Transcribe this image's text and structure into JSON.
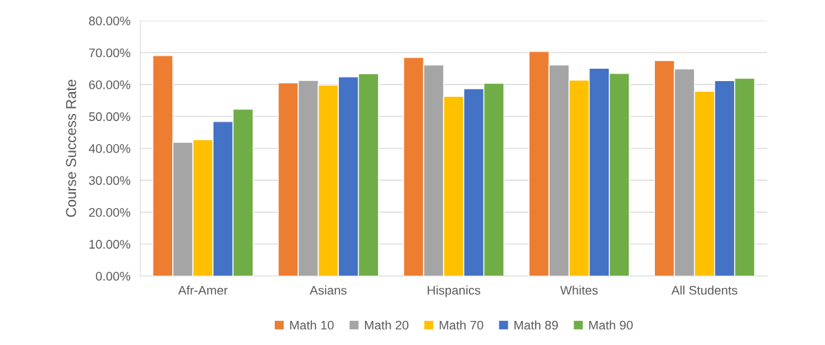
{
  "chart_data": {
    "type": "bar",
    "ylabel": "Course Success Rate",
    "categories": [
      "Afr-Amer",
      "Asians",
      "Hispanics",
      "Whites",
      "All Students"
    ],
    "series": [
      {
        "name": "Math 10",
        "color": "#ed7d31",
        "values": [
          69.1,
          60.5,
          68.5,
          70.4,
          67.5
        ]
      },
      {
        "name": "Math 20",
        "color": "#a5a5a5",
        "values": [
          41.9,
          61.3,
          66.1,
          66.1,
          64.9
        ]
      },
      {
        "name": "Math 70",
        "color": "#ffc000",
        "values": [
          42.7,
          59.8,
          56.3,
          61.4,
          57.9
        ]
      },
      {
        "name": "Math 89",
        "color": "#4472c4",
        "values": [
          48.4,
          62.4,
          58.7,
          65.1,
          61.2
        ]
      },
      {
        "name": "Math 90",
        "color": "#70ad47",
        "values": [
          52.3,
          63.4,
          60.4,
          63.5,
          62.0
        ]
      }
    ],
    "ylim": [
      0,
      80
    ],
    "yticks": [
      {
        "value": 0,
        "label": "0.00%"
      },
      {
        "value": 10,
        "label": "10.00%"
      },
      {
        "value": 20,
        "label": "20.00%"
      },
      {
        "value": 30,
        "label": "30.00%"
      },
      {
        "value": 40,
        "label": "40.00%"
      },
      {
        "value": 50,
        "label": "50.00%"
      },
      {
        "value": 60,
        "label": "60.00%"
      },
      {
        "value": 70,
        "label": "70.00%"
      },
      {
        "value": 80,
        "label": "80.00%"
      }
    ],
    "grid": "y",
    "legend": "bottom"
  }
}
